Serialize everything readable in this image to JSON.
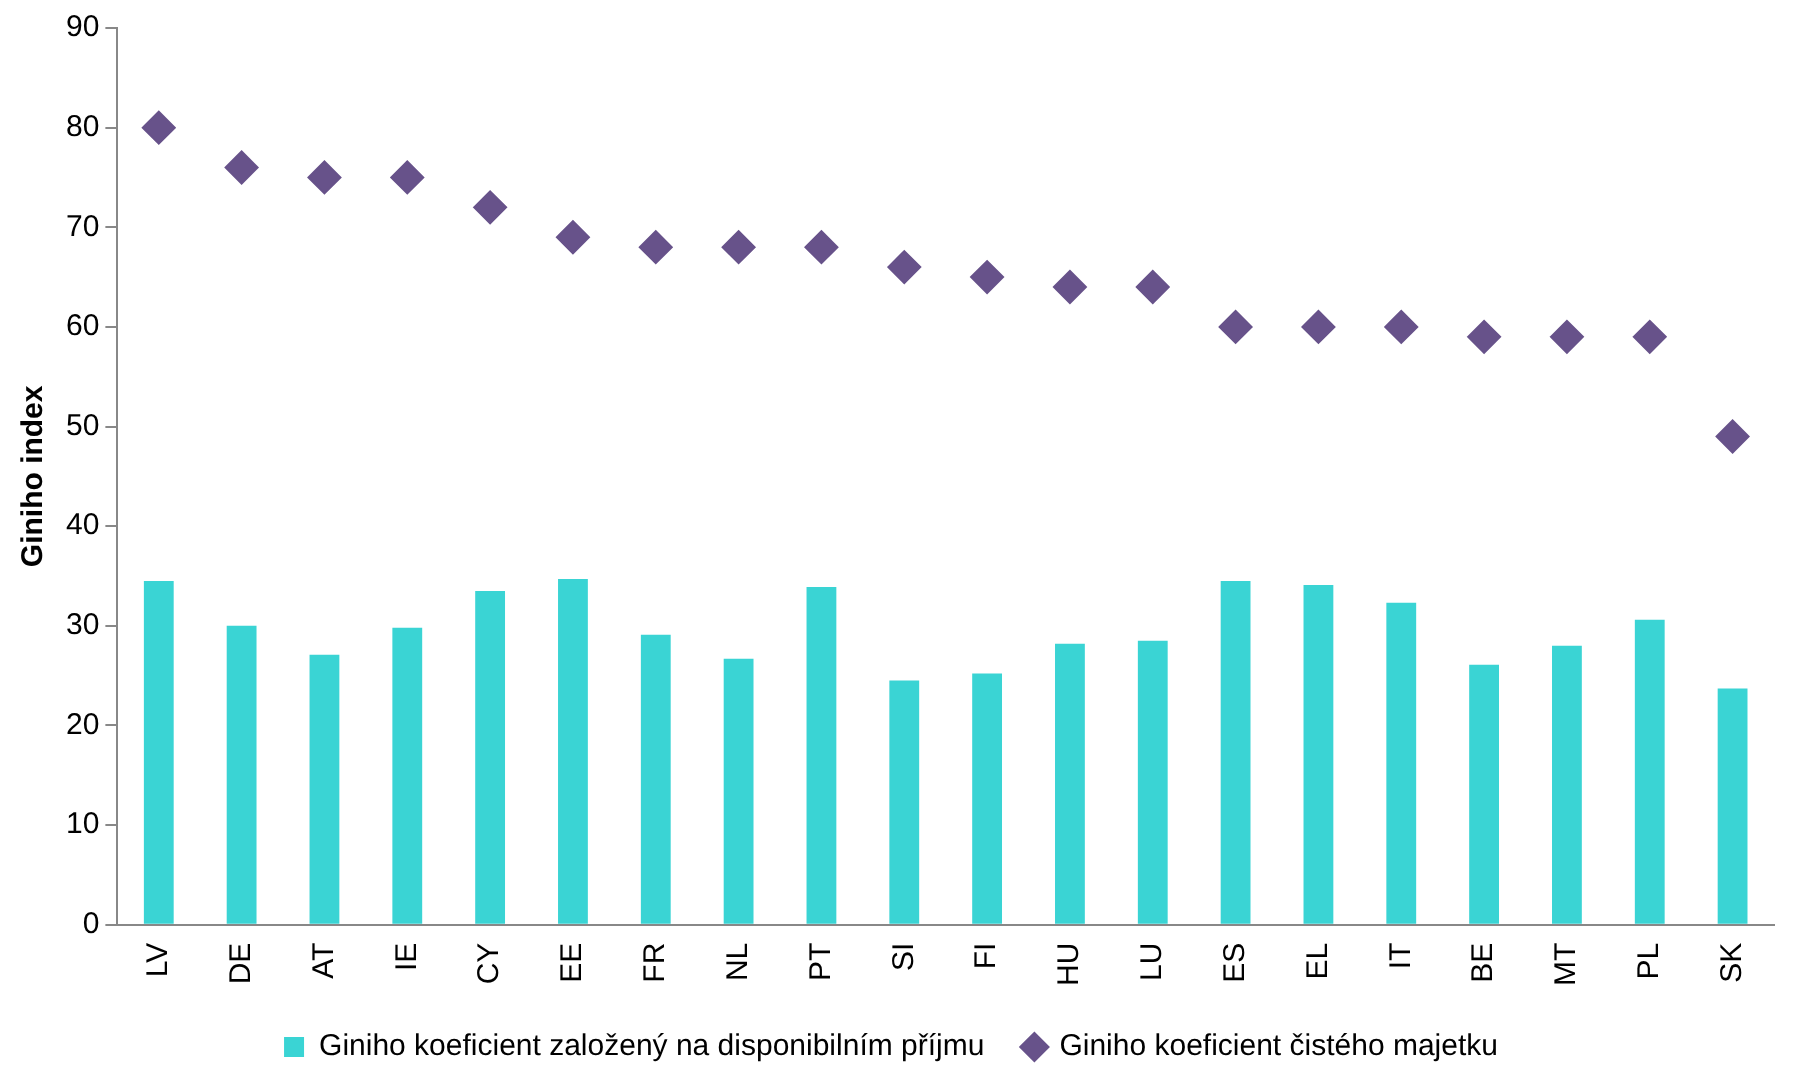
{
  "chart_data": {
    "type": "bar",
    "ylabel": "Giniho index",
    "categories": [
      "LV",
      "DE",
      "AT",
      "IE",
      "CY",
      "EE",
      "FR",
      "NL",
      "PT",
      "SI",
      "FI",
      "HU",
      "LU",
      "ES",
      "EL",
      "IT",
      "BE",
      "MT",
      "PL",
      "SK"
    ],
    "series": [
      {
        "name": "Giniho koeficient založený na disponibilním příjmu",
        "color": "#3ad4d4",
        "values": [
          34.5,
          30.0,
          27.1,
          29.8,
          33.5,
          34.7,
          29.1,
          26.7,
          33.9,
          24.5,
          25.2,
          28.2,
          28.5,
          34.5,
          34.1,
          32.3,
          26.1,
          28.0,
          30.6,
          23.7
        ]
      },
      {
        "name": "Giniho koeficient čistého majetku",
        "type": "scatter",
        "color": "#67528a",
        "marker": "diamond",
        "values": [
          80,
          76,
          75,
          75,
          72,
          69,
          68,
          68,
          68,
          66,
          65,
          64,
          64,
          60,
          60,
          60,
          59,
          59,
          59,
          49
        ]
      }
    ],
    "ylim": [
      0,
      90
    ],
    "yticks": [
      0,
      10,
      20,
      30,
      40,
      50,
      60,
      70,
      80,
      90
    ],
    "grid": false,
    "legend": "bottom"
  }
}
